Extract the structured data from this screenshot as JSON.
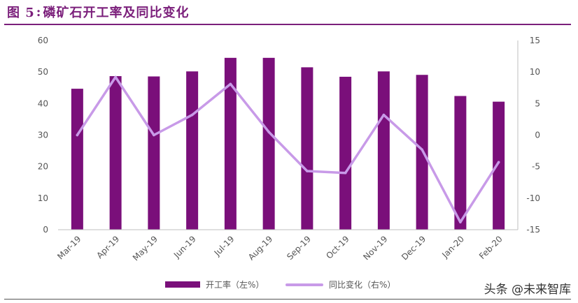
{
  "title": {
    "figure_label": "图 5",
    "separator": ":",
    "text": "磷矿石开工率及同比变化"
  },
  "watermark": "头条 @未来智库",
  "colors": {
    "title": "#7b1f7b",
    "bar": "#7a0f7a",
    "line": "#c89ae8"
  },
  "chart_data": {
    "type": "bar",
    "categories": [
      "Mar-19",
      "Apr-19",
      "May-19",
      "Jun-19",
      "Jul-19",
      "Aug-19",
      "Sep-19",
      "Oct-19",
      "Nov-19",
      "Dec-19",
      "Jan-20",
      "Feb-20"
    ],
    "series": [
      {
        "name": "开工率（左%）",
        "type": "bar",
        "axis": "left",
        "values": [
          44.7,
          48.7,
          48.6,
          50.2,
          54.5,
          54.5,
          51.5,
          48.5,
          50.2,
          49.1,
          42.4,
          40.6
        ]
      },
      {
        "name": "同比变化（右%）",
        "type": "line",
        "axis": "right",
        "values": [
          0.0,
          9.2,
          0.0,
          3.2,
          8.1,
          0.5,
          -5.7,
          -6.0,
          3.2,
          -2.3,
          -13.8,
          -4.3
        ]
      }
    ],
    "y_left": {
      "min": 0,
      "max": 60,
      "ticks": [
        0,
        10,
        20,
        30,
        40,
        50,
        60
      ]
    },
    "y_right": {
      "min": -15,
      "max": 15,
      "ticks": [
        15,
        10,
        5,
        0,
        -5,
        -10,
        -15
      ]
    },
    "legend_position": "bottom",
    "grid": false
  }
}
